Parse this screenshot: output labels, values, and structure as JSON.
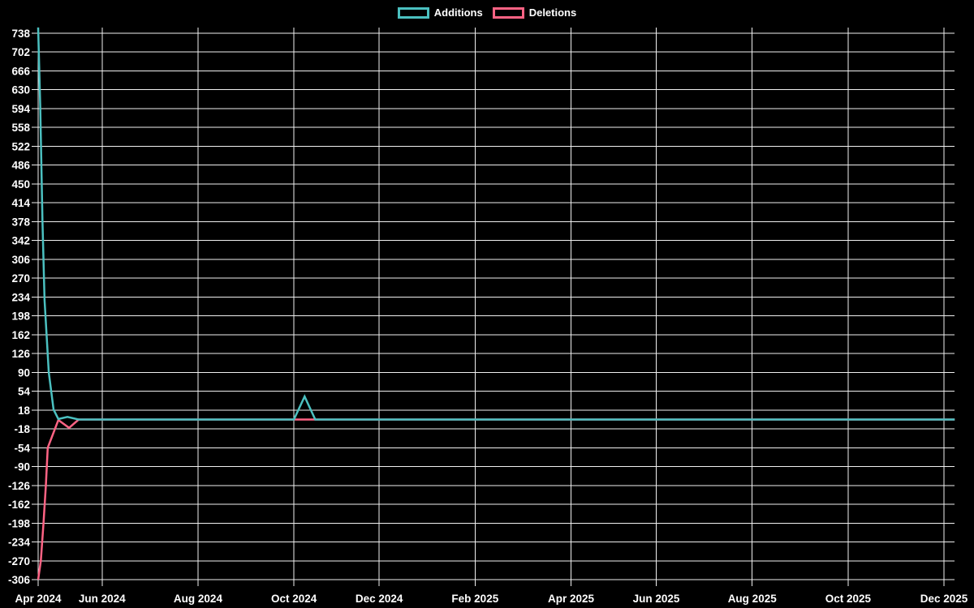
{
  "legend": {
    "items": [
      {
        "label": "Additions",
        "color": "#4bc0c0"
      },
      {
        "label": "Deletions",
        "color": "#ff6384"
      }
    ]
  },
  "chart_data": {
    "type": "line",
    "title": "",
    "xlabel": "",
    "ylabel": "",
    "background_color": "#000000",
    "grid": true,
    "grid_color": "#f0f0f0",
    "legend_position": "top-center",
    "x_axis": {
      "unit": "weeks-from-start",
      "ticks": [
        {
          "pos": 0,
          "label": "Apr 2024"
        },
        {
          "pos": 6,
          "label": "Jun 2024"
        },
        {
          "pos": 15,
          "label": "Aug 2024"
        },
        {
          "pos": 24,
          "label": "Oct 2024"
        },
        {
          "pos": 32,
          "label": "Dec 2024"
        },
        {
          "pos": 41,
          "label": "Feb 2025"
        },
        {
          "pos": 50,
          "label": "Apr 2025"
        },
        {
          "pos": 58,
          "label": "Jun 2025"
        },
        {
          "pos": 67,
          "label": "Aug 2025"
        },
        {
          "pos": 76,
          "label": "Oct 2025"
        },
        {
          "pos": 85,
          "label": "Dec 2025"
        }
      ],
      "range": [
        0,
        86
      ]
    },
    "y_axis": {
      "tick_step": 36,
      "ticks": [
        738,
        702,
        666,
        630,
        594,
        558,
        522,
        486,
        450,
        414,
        378,
        342,
        306,
        270,
        234,
        198,
        162,
        126,
        90,
        54,
        18,
        -18,
        -54,
        -90,
        -126,
        -162,
        -198,
        -234,
        -270,
        -306
      ],
      "ylim": [
        -306,
        749
      ]
    },
    "series": [
      {
        "name": "Additions",
        "color": "#4bc0c0",
        "max_value": 749,
        "points": [
          [
            0,
            749
          ],
          [
            0.2,
            597
          ],
          [
            0.4,
            380
          ],
          [
            0.6,
            228
          ],
          [
            1.0,
            90
          ],
          [
            1.45,
            19
          ],
          [
            1.9,
            1
          ],
          [
            2.75,
            5
          ],
          [
            3.8,
            0
          ],
          [
            24,
            0
          ],
          [
            25,
            44
          ],
          [
            26,
            0
          ],
          [
            86,
            0
          ]
        ]
      },
      {
        "name": "Deletions",
        "color": "#ff6384",
        "min_value": -306,
        "points": [
          [
            0,
            -306
          ],
          [
            0.25,
            -270
          ],
          [
            0.5,
            -198
          ],
          [
            0.72,
            -126
          ],
          [
            0.9,
            -54
          ],
          [
            1.9,
            -1
          ],
          [
            2.9,
            -16
          ],
          [
            3.8,
            0
          ],
          [
            86,
            0
          ]
        ]
      }
    ]
  }
}
